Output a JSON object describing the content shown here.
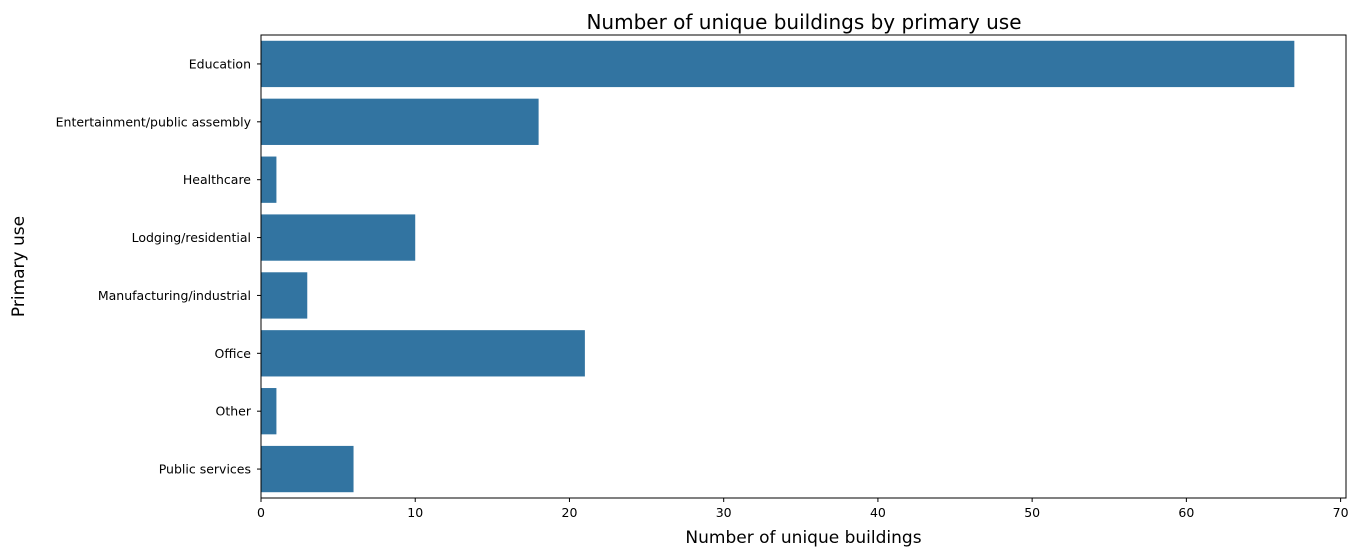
{
  "chart_data": {
    "type": "bar",
    "orientation": "horizontal",
    "title": "Number of unique buildings by primary use",
    "xlabel": "Number of unique buildings",
    "ylabel": "Primary use",
    "categories": [
      "Education",
      "Entertainment/public assembly",
      "Healthcare",
      "Lodging/residential",
      "Manufacturing/industrial",
      "Office",
      "Other",
      "Public services"
    ],
    "values": [
      67,
      18,
      1,
      10,
      3,
      21,
      1,
      6
    ],
    "xlim": [
      0,
      70.35
    ],
    "xticks": [
      0,
      10,
      20,
      30,
      40,
      50,
      60,
      70
    ],
    "xtick_labels": [
      "0",
      "10",
      "20",
      "30",
      "40",
      "50",
      "60",
      "70"
    ],
    "bar_color": "#3274a1",
    "grid": false,
    "legend": "none"
  }
}
